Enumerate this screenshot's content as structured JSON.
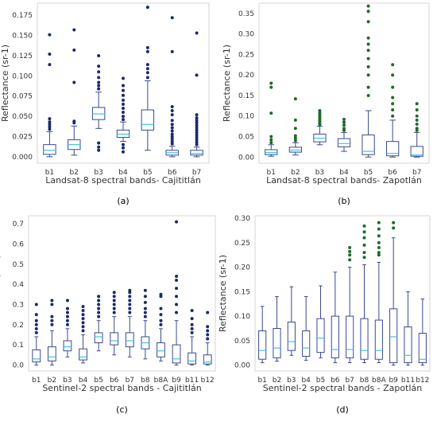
{
  "chart_data": [
    {
      "panel": "(a)",
      "type": "box",
      "xlabel": "Landsat-8 spectral bands- Cajititlán",
      "ylabel": "Reflectance (sr-1)",
      "ylim": [
        -0.008,
        0.19
      ],
      "yticks": [
        "0.000",
        "0.025",
        "0.050",
        "0.075",
        "0.100",
        "0.125",
        "0.150",
        "0.175"
      ],
      "ytick_values": [
        0,
        0.025,
        0.05,
        0.075,
        0.1,
        0.125,
        0.15,
        0.175
      ],
      "box_color": "#3a4a8c",
      "median_color": "#44c2e0",
      "outlier_color": "#1a2a6c",
      "categories": [
        "b1",
        "b2",
        "b3",
        "b4",
        "b5",
        "b6",
        "b7"
      ],
      "boxes": [
        {
          "whislo": 0.0,
          "q1": 0.003,
          "med": 0.008,
          "q3": 0.015,
          "whishi": 0.031,
          "fliers": [
            0.034,
            0.037,
            0.04,
            0.043,
            0.047,
            0.114,
            0.127,
            0.151
          ]
        },
        {
          "whislo": 0.002,
          "q1": 0.009,
          "med": 0.015,
          "q3": 0.021,
          "whishi": 0.038,
          "fliers": [
            0.042,
            0.044,
            0.092,
            0.132,
            0.157
          ]
        },
        {
          "whislo": 0.035,
          "q1": 0.046,
          "med": 0.053,
          "q3": 0.061,
          "whishi": 0.08,
          "fliers": [
            0.008,
            0.012,
            0.017,
            0.084,
            0.088,
            0.092,
            0.098,
            0.105,
            0.112,
            0.125
          ]
        },
        {
          "whislo": 0.019,
          "q1": 0.024,
          "med": 0.028,
          "q3": 0.033,
          "whishi": 0.043,
          "fliers": [
            0.006,
            0.011,
            0.015,
            0.046,
            0.05,
            0.055,
            0.06,
            0.065,
            0.07,
            0.076,
            0.082,
            0.088,
            0.097
          ]
        },
        {
          "whislo": 0.008,
          "q1": 0.033,
          "med": 0.04,
          "q3": 0.058,
          "whishi": 0.094,
          "fliers": [
            0.098,
            0.104,
            0.109,
            0.114,
            0.13,
            0.135,
            0.185
          ]
        },
        {
          "whislo": 0.0,
          "q1": 0.002,
          "med": 0.005,
          "q3": 0.008,
          "whishi": 0.013,
          "fliers": [
            0.016,
            0.019,
            0.022,
            0.025,
            0.028,
            0.032,
            0.036,
            0.04,
            0.045,
            0.052,
            0.057,
            0.062,
            0.13,
            0.172
          ]
        },
        {
          "whislo": 0.0,
          "q1": 0.002,
          "med": 0.004,
          "q3": 0.008,
          "whishi": 0.012,
          "fliers": [
            0.015,
            0.018,
            0.021,
            0.024,
            0.027,
            0.03,
            0.033,
            0.036,
            0.039,
            0.042,
            0.045,
            0.048,
            0.052,
            0.101,
            0.153
          ]
        }
      ]
    },
    {
      "panel": "(b)",
      "type": "box",
      "xlabel": "Landsat-8 spectral bands- Zapotlán",
      "ylabel": "Reflectance (sr-1)",
      "ylim": [
        -0.015,
        0.375
      ],
      "yticks": [
        "0.00",
        "0.05",
        "0.10",
        "0.15",
        "0.20",
        "0.25",
        "0.30",
        "0.35"
      ],
      "ytick_values": [
        0,
        0.05,
        0.1,
        0.15,
        0.2,
        0.25,
        0.3,
        0.35
      ],
      "box_color": "#3a4a8c",
      "median_color": "#44c2e0",
      "outlier_color": "#1f6a2a",
      "categories": [
        "b1",
        "b2",
        "b3",
        "b4",
        "b5",
        "b6",
        "b7"
      ],
      "boxes": [
        {
          "whislo": 0.002,
          "q1": 0.006,
          "med": 0.011,
          "q3": 0.018,
          "whishi": 0.03,
          "fliers": [
            0.035,
            0.042,
            0.05,
            0.107,
            0.17,
            0.18
          ]
        },
        {
          "whislo": 0.005,
          "q1": 0.012,
          "med": 0.017,
          "q3": 0.024,
          "whishi": 0.035,
          "fliers": [
            0.04,
            0.046,
            0.052,
            0.07,
            0.09,
            0.142
          ]
        },
        {
          "whislo": 0.03,
          "q1": 0.037,
          "med": 0.046,
          "q3": 0.056,
          "whishi": 0.075,
          "fliers": [
            0.079,
            0.083,
            0.088,
            0.093,
            0.098,
            0.103,
            0.108,
            0.113
          ]
        },
        {
          "whislo": 0.014,
          "q1": 0.025,
          "med": 0.033,
          "q3": 0.045,
          "whishi": 0.06,
          "fliers": [
            0.065,
            0.07,
            0.078,
            0.085,
            0.092
          ]
        },
        {
          "whislo": 0.0,
          "q1": 0.006,
          "med": 0.014,
          "q3": 0.054,
          "whishi": 0.113,
          "fliers": [
            0.15,
            0.17,
            0.2,
            0.22,
            0.24,
            0.26,
            0.275,
            0.29,
            0.33,
            0.355,
            0.368
          ]
        },
        {
          "whislo": 0.0,
          "q1": 0.003,
          "med": 0.009,
          "q3": 0.038,
          "whishi": 0.09,
          "fliers": [
            0.1,
            0.115,
            0.13,
            0.145,
            0.17,
            0.2,
            0.225
          ]
        },
        {
          "whislo": 0.0,
          "q1": 0.002,
          "med": 0.005,
          "q3": 0.026,
          "whishi": 0.06,
          "fliers": [
            0.065,
            0.07,
            0.08,
            0.09,
            0.1,
            0.115,
            0.13
          ]
        }
      ]
    },
    {
      "panel": "(c)",
      "type": "box",
      "xlabel": "Sentinel-2 spectral bands - Cajititlán",
      "ylabel": "Reflectance (sr-1)",
      "ylim": [
        -0.03,
        0.74
      ],
      "yticks": [
        "0.0",
        "0.1",
        "0.2",
        "0.3",
        "0.4",
        "0.5",
        "0.6",
        "0.7"
      ],
      "ytick_values": [
        0,
        0.1,
        0.2,
        0.3,
        0.4,
        0.5,
        0.6,
        0.7
      ],
      "box_color": "#3a4a8c",
      "median_color": "#44c2e0",
      "outlier_color": "#1a2a6c",
      "categories": [
        "b1",
        "b2",
        "b3",
        "b4",
        "b5",
        "b6",
        "b7",
        "b8",
        "b8A",
        "b9",
        "b11",
        "b12"
      ],
      "boxes": [
        {
          "whislo": 0.0,
          "q1": 0.015,
          "med": 0.03,
          "q3": 0.075,
          "whishi": 0.14,
          "fliers": [
            0.16,
            0.18,
            0.2,
            0.22,
            0.25,
            0.3
          ]
        },
        {
          "whislo": 0.0,
          "q1": 0.02,
          "med": 0.04,
          "q3": 0.09,
          "whishi": 0.17,
          "fliers": [
            0.2,
            0.22,
            0.24,
            0.3,
            0.32
          ]
        },
        {
          "whislo": 0.04,
          "q1": 0.07,
          "med": 0.09,
          "q3": 0.12,
          "whishi": 0.18,
          "fliers": [
            0.2,
            0.22,
            0.24,
            0.26,
            0.28,
            0.32
          ]
        },
        {
          "whislo": 0.01,
          "q1": 0.025,
          "med": 0.04,
          "q3": 0.08,
          "whishi": 0.15,
          "fliers": [
            0.17,
            0.19,
            0.21,
            0.23,
            0.25,
            0.27,
            0.29
          ]
        },
        {
          "whislo": 0.07,
          "q1": 0.11,
          "med": 0.14,
          "q3": 0.16,
          "whishi": 0.22,
          "fliers": [
            0.24,
            0.26,
            0.28,
            0.3,
            0.32,
            0.34
          ]
        },
        {
          "whislo": 0.05,
          "q1": 0.1,
          "med": 0.12,
          "q3": 0.16,
          "whishi": 0.24,
          "fliers": [
            0.26,
            0.28,
            0.3,
            0.32,
            0.34,
            0.36
          ]
        },
        {
          "whislo": 0.04,
          "q1": 0.09,
          "med": 0.12,
          "q3": 0.16,
          "whishi": 0.24,
          "fliers": [
            0.26,
            0.28,
            0.3,
            0.32,
            0.34,
            0.36,
            0.37
          ]
        },
        {
          "whislo": 0.03,
          "q1": 0.08,
          "med": 0.11,
          "q3": 0.14,
          "whishi": 0.22,
          "fliers": [
            0.24,
            0.26,
            0.28,
            0.31,
            0.34,
            0.37
          ]
        },
        {
          "whislo": 0.02,
          "q1": 0.04,
          "med": 0.07,
          "q3": 0.11,
          "whishi": 0.18,
          "fliers": [
            0.2,
            0.22,
            0.25,
            0.28,
            0.34,
            0.35
          ]
        },
        {
          "whislo": 0.0,
          "q1": 0.01,
          "med": 0.03,
          "q3": 0.1,
          "whishi": 0.22,
          "fliers": [
            0.26,
            0.3,
            0.34,
            0.38,
            0.42,
            0.44,
            0.71
          ]
        },
        {
          "whislo": 0.0,
          "q1": 0.005,
          "med": 0.02,
          "q3": 0.06,
          "whishi": 0.14,
          "fliers": [
            0.16,
            0.18,
            0.2,
            0.23,
            0.27
          ]
        },
        {
          "whislo": 0.0,
          "q1": 0.005,
          "med": 0.015,
          "q3": 0.05,
          "whishi": 0.11,
          "fliers": [
            0.13,
            0.15,
            0.17,
            0.19,
            0.26
          ]
        }
      ]
    },
    {
      "panel": "(d)",
      "type": "box",
      "xlabel": "Sentinel-2 spectral bands - Zapotlán",
      "ylabel": "Reflectance (sr-1)",
      "ylim": [
        -0.012,
        0.305
      ],
      "yticks": [
        "0.00",
        "0.05",
        "0.10",
        "0.15",
        "0.20",
        "0.25",
        "0.30"
      ],
      "ytick_values": [
        0,
        0.05,
        0.1,
        0.15,
        0.2,
        0.25,
        0.3
      ],
      "box_color": "#3a4a8c",
      "median_color": "#44c2e0",
      "outlier_color": "#1f6a2a",
      "categories": [
        "b1",
        "b2",
        "b3",
        "b4",
        "b5",
        "b6",
        "b7",
        "b8",
        "b8A",
        "b9",
        "b11",
        "b12"
      ],
      "boxes": [
        {
          "whislo": 0.005,
          "q1": 0.012,
          "med": 0.03,
          "q3": 0.07,
          "whishi": 0.12,
          "fliers": []
        },
        {
          "whislo": 0.008,
          "q1": 0.015,
          "med": 0.035,
          "q3": 0.075,
          "whishi": 0.14,
          "fliers": []
        },
        {
          "whislo": 0.02,
          "q1": 0.03,
          "med": 0.048,
          "q3": 0.088,
          "whishi": 0.16,
          "fliers": []
        },
        {
          "whislo": 0.01,
          "q1": 0.018,
          "med": 0.035,
          "q3": 0.07,
          "whishi": 0.14,
          "fliers": []
        },
        {
          "whislo": 0.015,
          "q1": 0.026,
          "med": 0.055,
          "q3": 0.095,
          "whishi": 0.162,
          "fliers": []
        },
        {
          "whislo": 0.005,
          "q1": 0.015,
          "med": 0.032,
          "q3": 0.1,
          "whishi": 0.19,
          "fliers": []
        },
        {
          "whislo": 0.005,
          "q1": 0.015,
          "med": 0.032,
          "q3": 0.1,
          "whishi": 0.2,
          "fliers": [
            0.215,
            0.225,
            0.232,
            0.24
          ]
        },
        {
          "whislo": 0.005,
          "q1": 0.012,
          "med": 0.03,
          "q3": 0.095,
          "whishi": 0.205,
          "fliers": [
            0.22,
            0.23,
            0.245,
            0.26,
            0.272,
            0.284
          ]
        },
        {
          "whislo": 0.005,
          "q1": 0.012,
          "med": 0.03,
          "q3": 0.092,
          "whishi": 0.21,
          "fliers": [
            0.225,
            0.23,
            0.24,
            0.25,
            0.264,
            0.278,
            0.291
          ]
        },
        {
          "whislo": 0.0,
          "q1": 0.005,
          "med": 0.058,
          "q3": 0.115,
          "whishi": 0.26,
          "fliers": [
            0.28,
            0.291
          ]
        },
        {
          "whislo": 0.0,
          "q1": 0.005,
          "med": 0.02,
          "q3": 0.078,
          "whishi": 0.15,
          "fliers": []
        },
        {
          "whislo": 0.0,
          "q1": 0.005,
          "med": 0.012,
          "q3": 0.065,
          "whishi": 0.135,
          "fliers": []
        }
      ]
    }
  ]
}
